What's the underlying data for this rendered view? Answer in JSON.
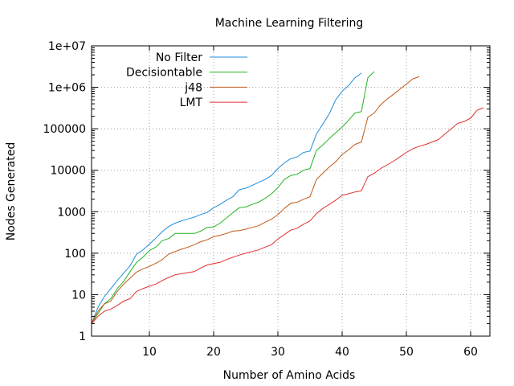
{
  "chart_data": {
    "type": "line",
    "title": "Machine Learning Filtering",
    "xlabel": "Number of Amino Acids",
    "ylabel": "Nodes Generated",
    "xlim": [
      1,
      63
    ],
    "ylim": [
      1,
      10000000
    ],
    "y_scale": "log",
    "grid": true,
    "legend_position": "top-left",
    "x_ticks": [
      10,
      20,
      30,
      40,
      50,
      60
    ],
    "y_ticks": [
      1,
      10,
      100,
      1000,
      10000,
      100000,
      1000000,
      10000000
    ],
    "x_tick_labels": [
      "10",
      "20",
      "30",
      "40",
      "50",
      "60"
    ],
    "y_tick_labels": [
      "1",
      "10",
      "100",
      "1000",
      "10000",
      "100000",
      "1e+06",
      "1e+07"
    ],
    "series": [
      {
        "name": "No Filter",
        "color": "#1f8fdc",
        "x": [
          1,
          2,
          3,
          4,
          5,
          6,
          7,
          8,
          9,
          10,
          11,
          12,
          13,
          14,
          15,
          16,
          17,
          18,
          19,
          20,
          21,
          22,
          23,
          24,
          25,
          26,
          27,
          28,
          29,
          30,
          31,
          32,
          33,
          34,
          35,
          36,
          37,
          38,
          39,
          40,
          41,
          42,
          43
        ],
        "y": [
          2,
          5,
          9,
          14,
          22,
          33,
          50,
          95,
          120,
          165,
          230,
          330,
          440,
          530,
          600,
          670,
          740,
          860,
          960,
          1250,
          1500,
          1900,
          2300,
          3400,
          3700,
          4300,
          5100,
          6000,
          7500,
          11000,
          15000,
          19000,
          21000,
          27000,
          29000,
          75000,
          130000,
          230000,
          500000,
          800000,
          1100000,
          1700000,
          2200000
        ]
      },
      {
        "name": "Decisiontable",
        "color": "#22b422",
        "x": [
          1,
          2,
          3,
          4,
          5,
          6,
          7,
          8,
          9,
          10,
          11,
          12,
          13,
          14,
          15,
          16,
          17,
          18,
          19,
          20,
          21,
          22,
          23,
          24,
          25,
          26,
          27,
          28,
          29,
          30,
          31,
          32,
          33,
          34,
          35,
          36,
          37,
          38,
          39,
          40,
          41,
          42,
          43,
          44,
          45
        ],
        "y": [
          2,
          3.5,
          6,
          8,
          14,
          21,
          36,
          60,
          80,
          115,
          140,
          200,
          225,
          300,
          300,
          300,
          300,
          340,
          420,
          430,
          530,
          710,
          950,
          1250,
          1300,
          1500,
          1700,
          2100,
          2700,
          3800,
          6000,
          7500,
          8000,
          10000,
          11000,
          30000,
          41000,
          58000,
          80000,
          110000,
          160000,
          240000,
          260000,
          1700000,
          2400000
        ]
      },
      {
        "name": "j48",
        "color": "#c05818",
        "x": [
          1,
          2,
          3,
          4,
          5,
          6,
          7,
          8,
          9,
          10,
          11,
          12,
          13,
          14,
          15,
          16,
          17,
          18,
          19,
          20,
          21,
          22,
          23,
          24,
          25,
          26,
          27,
          28,
          29,
          30,
          31,
          32,
          33,
          34,
          35,
          36,
          37,
          38,
          39,
          40,
          41,
          42,
          43,
          44,
          45,
          46,
          47,
          48,
          49,
          50,
          51,
          52
        ],
        "y": [
          2,
          4,
          6,
          7,
          12,
          18,
          25,
          35,
          42,
          48,
          57,
          70,
          95,
          110,
          125,
          140,
          160,
          190,
          210,
          250,
          270,
          300,
          340,
          350,
          380,
          420,
          460,
          560,
          660,
          850,
          1200,
          1600,
          1700,
          2000,
          2300,
          6000,
          8500,
          12000,
          16000,
          24000,
          31000,
          42000,
          48000,
          190000,
          240000,
          380000,
          520000,
          680000,
          900000,
          1200000,
          1600000,
          1800000
        ]
      },
      {
        "name": "LMT",
        "color": "#e03030",
        "x": [
          1,
          2,
          3,
          4,
          5,
          6,
          7,
          8,
          9,
          10,
          11,
          12,
          13,
          14,
          15,
          16,
          17,
          18,
          19,
          20,
          21,
          22,
          23,
          24,
          25,
          26,
          27,
          28,
          29,
          30,
          31,
          32,
          33,
          34,
          35,
          36,
          37,
          38,
          39,
          40,
          41,
          42,
          43,
          44,
          45,
          46,
          47,
          48,
          49,
          50,
          51,
          52,
          53,
          54,
          55,
          56,
          57,
          58,
          59,
          60,
          61,
          62
        ],
        "y": [
          2,
          3,
          4,
          4.5,
          5.5,
          7,
          8,
          12,
          14,
          16,
          18,
          22,
          26,
          30,
          32,
          34,
          36,
          44,
          52,
          56,
          60,
          70,
          80,
          90,
          100,
          110,
          120,
          140,
          160,
          220,
          280,
          360,
          400,
          500,
          600,
          900,
          1200,
          1500,
          1900,
          2500,
          2700,
          3000,
          3200,
          7000,
          8500,
          11000,
          13500,
          16500,
          21000,
          27000,
          33000,
          38000,
          42000,
          48000,
          55000,
          75000,
          100000,
          135000,
          150000,
          180000,
          280000,
          320000
        ]
      }
    ]
  }
}
